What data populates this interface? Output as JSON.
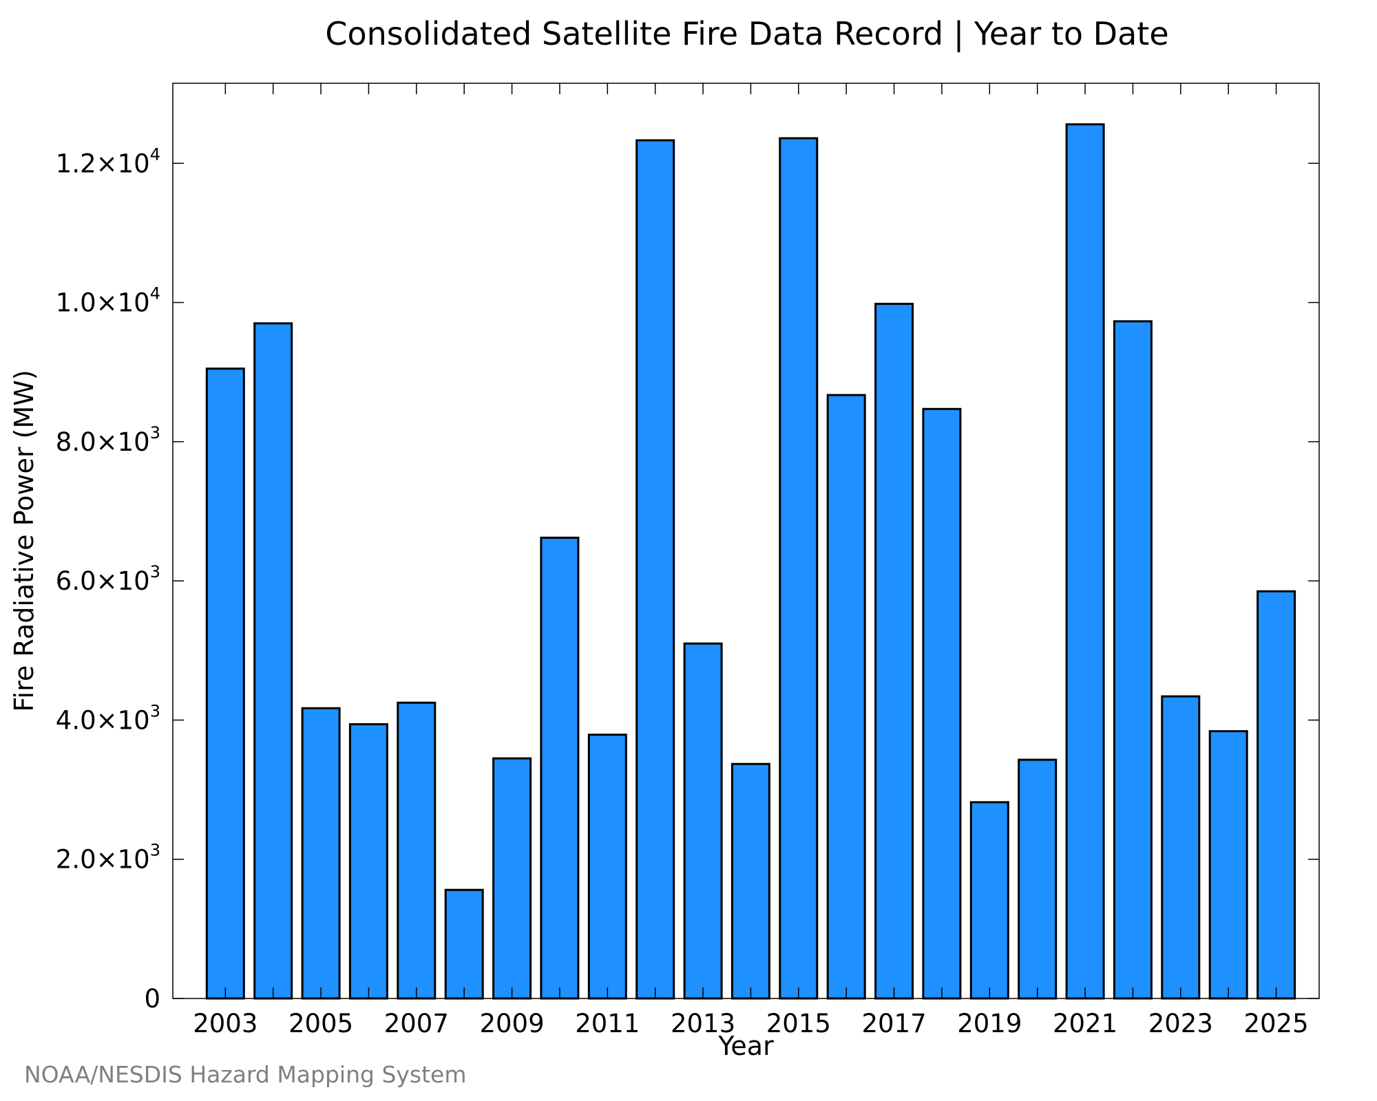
{
  "chart_data": {
    "type": "bar",
    "title": "Consolidated Satellite Fire Data Record | Year to Date",
    "xlabel": "Year",
    "ylabel": "Fire Radiative Power (MW)",
    "categories": [
      2003,
      2004,
      2005,
      2006,
      2007,
      2008,
      2009,
      2010,
      2011,
      2012,
      2013,
      2014,
      2015,
      2016,
      2017,
      2018,
      2019,
      2020,
      2021,
      2022,
      2023,
      2024,
      2025
    ],
    "values": [
      9050,
      9700,
      4170,
      3940,
      4250,
      1560,
      3450,
      6620,
      3790,
      12330,
      5100,
      3370,
      12360,
      8670,
      9980,
      8470,
      2820,
      3430,
      12560,
      9730,
      4340,
      3840,
      5850
    ],
    "x_tick_labels": [
      "2003",
      "2005",
      "2007",
      "2009",
      "2011",
      "2013",
      "2015",
      "2017",
      "2019",
      "2021",
      "2023",
      "2025"
    ],
    "y_ticks": [
      {
        "value": 0,
        "mantissa": "0",
        "exp": ""
      },
      {
        "value": 2000,
        "mantissa": "2.0×10",
        "exp": "3"
      },
      {
        "value": 4000,
        "mantissa": "4.0×10",
        "exp": "3"
      },
      {
        "value": 6000,
        "mantissa": "6.0×10",
        "exp": "3"
      },
      {
        "value": 8000,
        "mantissa": "8.0×10",
        "exp": "3"
      },
      {
        "value": 10000,
        "mantissa": "1.0×10",
        "exp": "4"
      },
      {
        "value": 12000,
        "mantissa": "1.2×10",
        "exp": "4"
      }
    ],
    "ylim": [
      0,
      13150
    ],
    "xlim": [
      2001.9,
      2025.9
    ],
    "grid": false,
    "bar_color": "#1E90FF",
    "bar_edge_color": "#000000"
  },
  "footer": {
    "source": "NOAA/NESDIS Hazard Mapping System"
  },
  "colors": {
    "footer_text": "#808080"
  }
}
